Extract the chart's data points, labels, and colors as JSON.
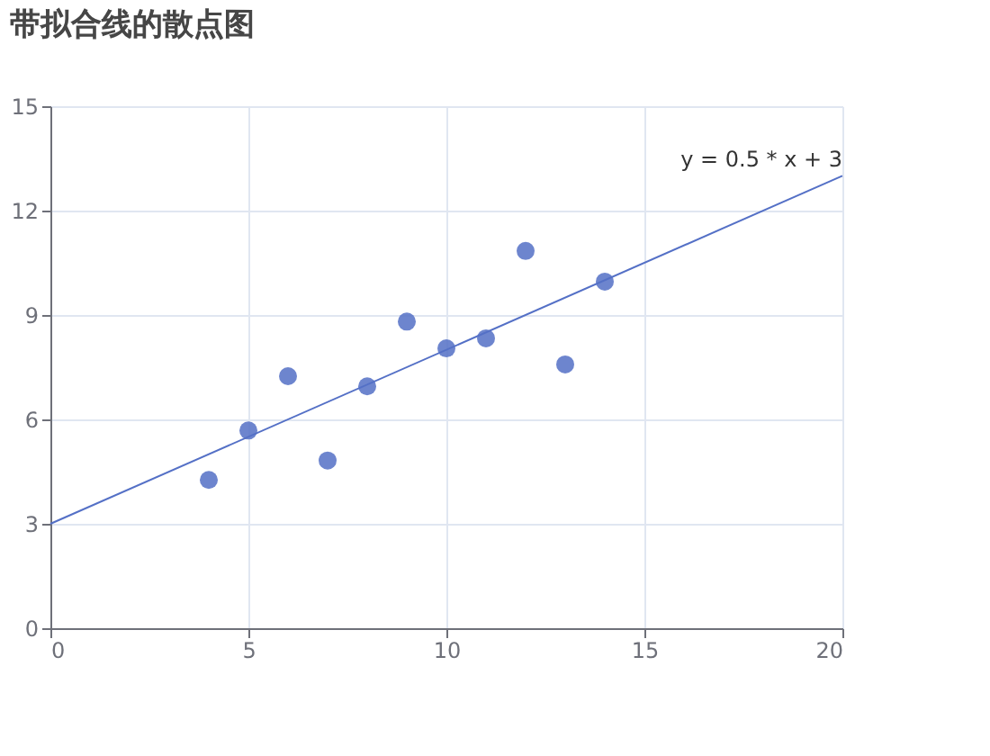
{
  "chart_data": {
    "type": "scatter",
    "title": "带拟合线的散点图",
    "series": [
      {
        "marker": "circle",
        "color": "#5470c6",
        "x": [
          10,
          8,
          13,
          9,
          11,
          14,
          6,
          4,
          12,
          7,
          5
        ],
        "values": [
          8.04,
          6.95,
          7.58,
          8.81,
          8.33,
          9.96,
          7.24,
          4.26,
          10.84,
          4.82,
          5.68
        ]
      },
      {
        "type": "line",
        "marker": "none",
        "color": "#5470c6",
        "x": [
          0,
          20
        ],
        "values": [
          3,
          13
        ]
      }
    ],
    "annotations": [
      {
        "text": "y = 0.5 * x + 3",
        "x": 20,
        "y": 13
      }
    ],
    "xlim": [
      0,
      20
    ],
    "xticks": [
      0,
      5,
      10,
      15,
      20
    ],
    "ylim": [
      0,
      15
    ],
    "yticks": [
      0,
      3,
      6,
      9,
      12,
      15
    ],
    "grid": true
  }
}
